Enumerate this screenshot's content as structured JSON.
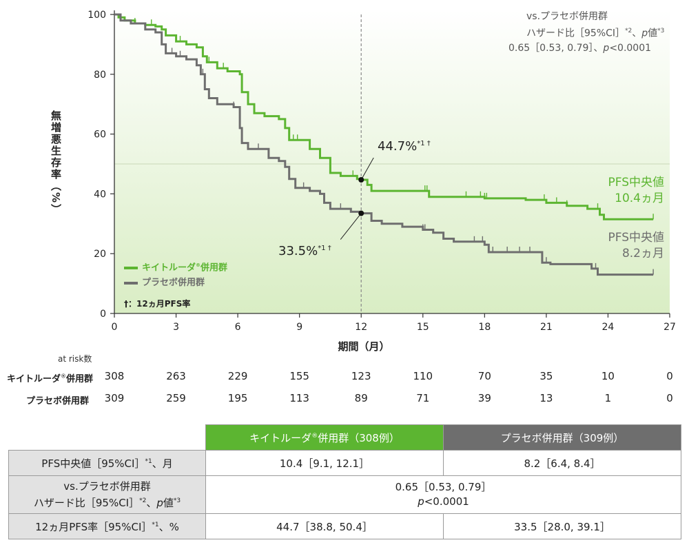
{
  "chart_data": {
    "type": "line",
    "subtype": "kaplan-meier",
    "ylabel": "無増悪生存率（%）",
    "xlabel": "期間（月）",
    "xlim": [
      0,
      27
    ],
    "ylim": [
      0,
      100
    ],
    "xticks": [
      "0",
      "3",
      "6",
      "9",
      "12",
      "15",
      "18",
      "21",
      "24",
      "27"
    ],
    "yticks": [
      "0",
      "20",
      "40",
      "60",
      "80",
      "100"
    ],
    "reference_line_x": 12,
    "reference_line_y": 50,
    "hr_annotation": {
      "line1": "vs.プラセボ併用群",
      "line2_pre": "ハザード比［95%CI］",
      "line2_sup": "*2",
      "line2_mid": "、",
      "line2_p": "p",
      "line2_post": "値",
      "line2_sup2": "*3",
      "line3": "0.65［0.53, 0.79］、",
      "line3_p": "p",
      "line3_post": "<0.0001"
    },
    "point_labels": {
      "keytruda": {
        "value": "44.7%",
        "sup": "*1 †",
        "x": 12,
        "y": 44.7
      },
      "placebo": {
        "value": "33.5%",
        "sup": "*1 †",
        "x": 12,
        "y": 33.5
      }
    },
    "median_labels": {
      "keytruda": {
        "line1": "PFS中央値",
        "line2": "10.4ヵ月"
      },
      "placebo": {
        "line1": "PFS中央値",
        "line2": "8.2ヵ月"
      }
    },
    "legend": {
      "keytruda": "キイトルーダ",
      "keytruda_mark": "®",
      "keytruda_suffix": "併用群",
      "placebo": "プラセボ併用群",
      "note": "†：12ヵ月PFS率"
    },
    "series": [
      {
        "name": "キイトルーダ併用群",
        "color": "#5cb531",
        "points": [
          [
            0,
            100
          ],
          [
            0.2,
            99
          ],
          [
            0.5,
            98
          ],
          [
            1.0,
            97
          ],
          [
            1.5,
            96.5
          ],
          [
            2.0,
            96
          ],
          [
            2.3,
            95
          ],
          [
            2.5,
            93
          ],
          [
            3.0,
            91
          ],
          [
            3.5,
            90
          ],
          [
            4.0,
            89
          ],
          [
            4.3,
            86
          ],
          [
            4.5,
            84
          ],
          [
            5.0,
            82
          ],
          [
            5.5,
            81
          ],
          [
            6.1,
            80
          ],
          [
            6.2,
            74
          ],
          [
            6.5,
            70
          ],
          [
            6.8,
            67
          ],
          [
            7.3,
            66
          ],
          [
            8.0,
            65
          ],
          [
            8.3,
            62
          ],
          [
            8.5,
            58
          ],
          [
            9.5,
            55
          ],
          [
            10.0,
            52
          ],
          [
            10.5,
            47
          ],
          [
            11.0,
            46
          ],
          [
            11.8,
            45
          ],
          [
            12.0,
            44.7
          ],
          [
            12.3,
            43
          ],
          [
            12.5,
            41
          ],
          [
            13.5,
            41
          ],
          [
            15.2,
            41
          ],
          [
            15.3,
            39
          ],
          [
            17.0,
            39
          ],
          [
            18.0,
            38.5
          ],
          [
            20.0,
            38
          ],
          [
            21.0,
            37
          ],
          [
            22.0,
            36
          ],
          [
            23.0,
            35
          ],
          [
            23.6,
            33
          ],
          [
            23.8,
            31.5
          ],
          [
            24.5,
            31.5
          ],
          [
            26.2,
            31.5
          ]
        ],
        "censor_x": [
          1.0,
          1.8,
          3.2,
          4.6,
          5.3,
          8.7,
          8.9,
          11.6,
          15.1,
          15.2,
          15.3,
          17.1,
          17.8,
          18.0,
          18.1,
          20.9,
          21.5,
          22.0,
          23.5,
          26.2
        ]
      },
      {
        "name": "プラセボ併用群",
        "color": "#6e6e6e",
        "points": [
          [
            0,
            100
          ],
          [
            0.3,
            98
          ],
          [
            0.8,
            97
          ],
          [
            1.5,
            95
          ],
          [
            2.0,
            94
          ],
          [
            2.3,
            90
          ],
          [
            2.5,
            87
          ],
          [
            3.0,
            86
          ],
          [
            3.5,
            85
          ],
          [
            4.0,
            83
          ],
          [
            4.2,
            80
          ],
          [
            4.4,
            75
          ],
          [
            4.6,
            72
          ],
          [
            5.0,
            70
          ],
          [
            5.8,
            69
          ],
          [
            6.1,
            62
          ],
          [
            6.2,
            57
          ],
          [
            6.5,
            55
          ],
          [
            7.5,
            52
          ],
          [
            8.0,
            51
          ],
          [
            8.3,
            49
          ],
          [
            8.5,
            45
          ],
          [
            8.8,
            42
          ],
          [
            9.5,
            41
          ],
          [
            10.0,
            40
          ],
          [
            10.2,
            37
          ],
          [
            10.5,
            35
          ],
          [
            11.5,
            34
          ],
          [
            12.0,
            33.5
          ],
          [
            12.5,
            31
          ],
          [
            13.0,
            30
          ],
          [
            14.0,
            29
          ],
          [
            15.0,
            28
          ],
          [
            15.5,
            27
          ],
          [
            16.0,
            25
          ],
          [
            16.5,
            24
          ],
          [
            18.0,
            23
          ],
          [
            18.2,
            20.5
          ],
          [
            19.0,
            20.5
          ],
          [
            20.5,
            20.5
          ],
          [
            20.8,
            17
          ],
          [
            21.2,
            16.5
          ],
          [
            22.5,
            16.5
          ],
          [
            23.2,
            15
          ],
          [
            23.5,
            13
          ],
          [
            24.5,
            13
          ],
          [
            26.2,
            13
          ]
        ],
        "censor_x": [
          2.8,
          3.2,
          4.3,
          5.8,
          7.0,
          9.2,
          11.0,
          15.0,
          15.1,
          17.5,
          17.9,
          18.4,
          19.1,
          19.7,
          20.2,
          20.8,
          21.0,
          23.4,
          26.2
        ]
      }
    ]
  },
  "risk_table": {
    "title": "at risk数",
    "rows": [
      {
        "label": "キイトルーダ",
        "mark": "®",
        "label_suffix": "併用群",
        "values": [
          "308",
          "263",
          "229",
          "155",
          "123",
          "110",
          "70",
          "35",
          "10",
          "0"
        ]
      },
      {
        "label": "プラセボ併用群",
        "values": [
          "309",
          "259",
          "195",
          "113",
          "89",
          "71",
          "39",
          "13",
          "1",
          "0"
        ]
      }
    ]
  },
  "summary_table": {
    "header_keytruda": "キイトルーダ",
    "header_keytruda_mark": "®",
    "header_keytruda_suffix": "併用群（308例）",
    "header_placebo": "プラセボ併用群（309例）",
    "row1_label": "PFS中央値［95%CI］",
    "row1_label_sup": "*1",
    "row1_label_suffix": "、月",
    "row1_keytruda": "10.4［9.1, 12.1］",
    "row1_placebo": "8.2［6.4, 8.4］",
    "row2_label_line1": "vs.プラセボ併用群",
    "row2_label_line2": "ハザード比［95%CI］",
    "row2_label_sup": "*2",
    "row2_label_mid": "、",
    "row2_label_p": "p",
    "row2_label_post": "値",
    "row2_label_sup2": "*3",
    "row2_value_line1": "0.65［0.53, 0.79］",
    "row2_value_p": "p",
    "row2_value_post": "<0.0001",
    "row3_label": "12ヵ月PFS率［95%CI］",
    "row3_label_sup": "*1",
    "row3_label_suffix": "、%",
    "row3_keytruda": "44.7［38.8, 50.4］",
    "row3_placebo": "33.5［28.0, 39.1］"
  }
}
